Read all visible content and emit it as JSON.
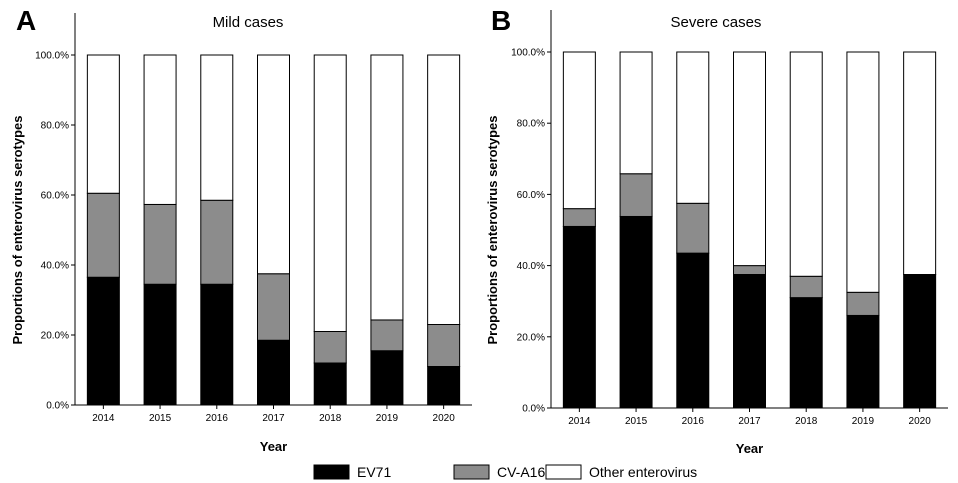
{
  "legend": [
    {
      "name": "EV71",
      "color": "#000000"
    },
    {
      "name": "CV-A16",
      "color": "#8c8c8c"
    },
    {
      "name": "Other enterovirus",
      "color": "#ffffff"
    }
  ],
  "chart_data": [
    {
      "type": "bar",
      "stacked": true,
      "panel_letter": "A",
      "title": "Mild cases",
      "xlabel": "Year",
      "ylabel": "Proportions of enterovirus serotypes",
      "categories": [
        "2014",
        "2015",
        "2016",
        "2017",
        "2018",
        "2019",
        "2020"
      ],
      "ylim": [
        0,
        100
      ],
      "yticks": [
        0,
        20,
        40,
        60,
        80,
        100
      ],
      "ytick_labels": [
        "0.0%",
        "20.0%",
        "40.0%",
        "60.0%",
        "80.0%",
        "100.0%"
      ],
      "series": [
        {
          "name": "EV71",
          "values": [
            36.5,
            34.5,
            34.5,
            18.5,
            12.0,
            15.5,
            11.0
          ]
        },
        {
          "name": "CV-A16",
          "values": [
            24.0,
            22.8,
            24.0,
            19.0,
            9.0,
            8.8,
            12.0
          ]
        },
        {
          "name": "Other enterovirus",
          "values": [
            39.5,
            42.7,
            41.5,
            62.5,
            79.0,
            75.7,
            77.0
          ]
        }
      ]
    },
    {
      "type": "bar",
      "stacked": true,
      "panel_letter": "B",
      "title": "Severe cases",
      "xlabel": "Year",
      "ylabel": "Proportions of enterovirus serotypes",
      "categories": [
        "2014",
        "2015",
        "2016",
        "2017",
        "2018",
        "2019",
        "2020"
      ],
      "ylim": [
        0,
        100
      ],
      "yticks": [
        0,
        20,
        40,
        60,
        80,
        100
      ],
      "ytick_labels": [
        "0.0%",
        "20.0%",
        "40.0%",
        "60.0%",
        "80.0%",
        "100.0%"
      ],
      "series": [
        {
          "name": "EV71",
          "values": [
            51.0,
            53.8,
            43.5,
            37.5,
            31.0,
            26.0,
            37.5
          ]
        },
        {
          "name": "CV-A16",
          "values": [
            5.0,
            12.0,
            14.0,
            2.5,
            6.0,
            6.5,
            0.0
          ]
        },
        {
          "name": "Other enterovirus",
          "values": [
            44.0,
            34.2,
            42.5,
            60.0,
            63.0,
            67.5,
            62.5
          ]
        }
      ]
    }
  ]
}
